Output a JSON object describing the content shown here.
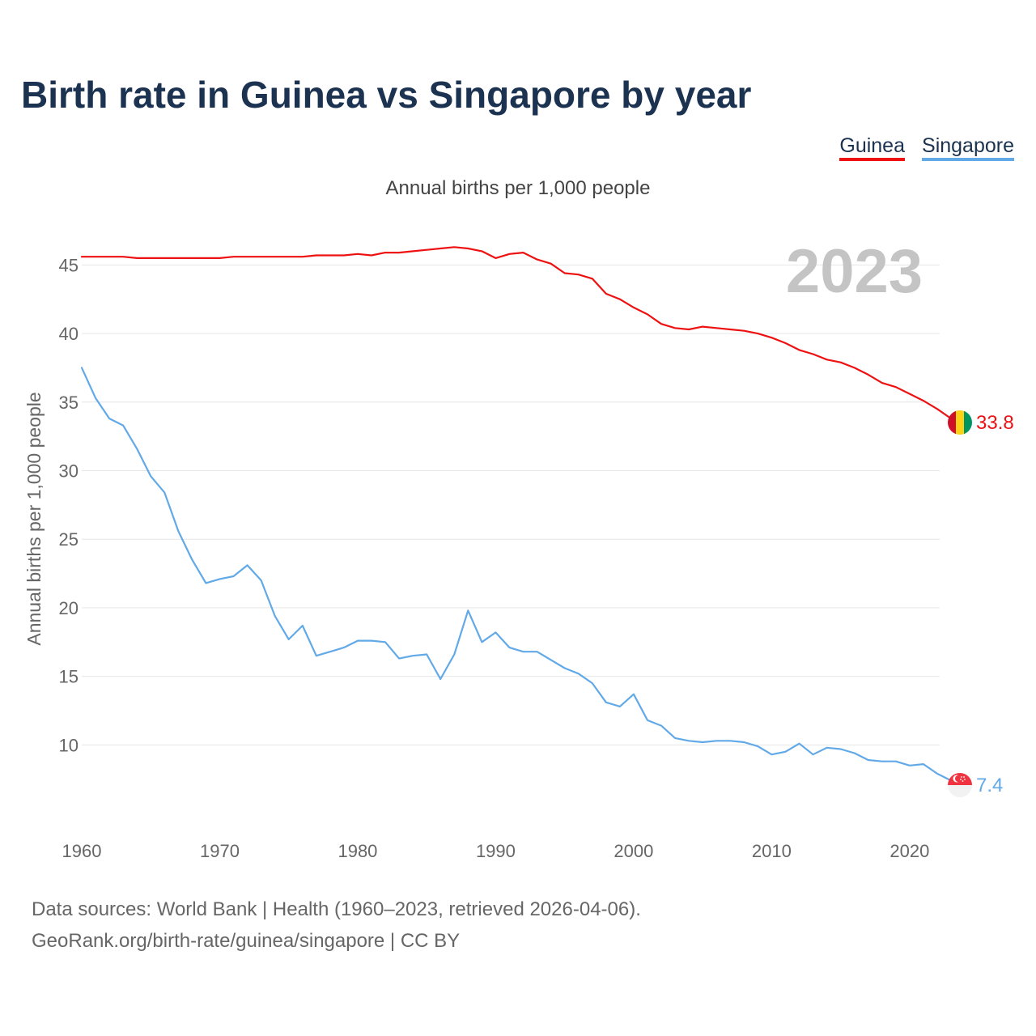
{
  "chart_data": {
    "type": "line",
    "title": "Birth rate in Guinea vs Singapore by year",
    "subtitle": "Annual births per 1,000 people",
    "ylabel": "Annual births per 1,000 people",
    "xlabel": "",
    "year_label": "2023",
    "xlim": [
      1960,
      2023
    ],
    "ylim": [
      5.3,
      47.5
    ],
    "x_ticks": [
      1960,
      1970,
      1980,
      1990,
      2000,
      2010,
      2020
    ],
    "y_ticks": [
      10,
      15,
      20,
      25,
      30,
      35,
      40,
      45
    ],
    "grid": true,
    "legend_position": "top-right",
    "series": [
      {
        "name": "Guinea",
        "color": "#ee1111",
        "end_label": "33.8",
        "flag": "guinea-flag",
        "x": [
          1960,
          1961,
          1962,
          1963,
          1964,
          1965,
          1966,
          1967,
          1968,
          1969,
          1970,
          1971,
          1972,
          1973,
          1974,
          1975,
          1976,
          1977,
          1978,
          1979,
          1980,
          1981,
          1982,
          1983,
          1984,
          1985,
          1986,
          1987,
          1988,
          1989,
          1990,
          1991,
          1992,
          1993,
          1994,
          1995,
          1996,
          1997,
          1998,
          1999,
          2000,
          2001,
          2002,
          2003,
          2004,
          2005,
          2006,
          2007,
          2008,
          2009,
          2010,
          2011,
          2012,
          2013,
          2014,
          2015,
          2016,
          2017,
          2018,
          2019,
          2020,
          2021,
          2022,
          2023
        ],
        "values": [
          45.6,
          45.6,
          45.6,
          45.6,
          45.5,
          45.5,
          45.5,
          45.5,
          45.5,
          45.5,
          45.5,
          45.6,
          45.6,
          45.6,
          45.6,
          45.6,
          45.6,
          45.7,
          45.7,
          45.7,
          45.8,
          45.7,
          45.9,
          45.9,
          46.0,
          46.1,
          46.2,
          46.3,
          46.2,
          46.0,
          45.5,
          45.8,
          45.9,
          45.4,
          45.1,
          44.4,
          44.3,
          44.0,
          42.9,
          42.5,
          41.9,
          41.4,
          40.7,
          40.4,
          40.3,
          40.5,
          40.4,
          40.3,
          40.2,
          40.0,
          39.7,
          39.3,
          38.8,
          38.5,
          38.1,
          37.9,
          37.5,
          37.0,
          36.4,
          36.1,
          35.6,
          35.1,
          34.5,
          33.8
        ]
      },
      {
        "name": "Singapore",
        "color": "#62a9e8",
        "end_label": "7.4",
        "flag": "singapore-flag",
        "x": [
          1960,
          1961,
          1962,
          1963,
          1964,
          1965,
          1966,
          1967,
          1968,
          1969,
          1970,
          1971,
          1972,
          1973,
          1974,
          1975,
          1976,
          1977,
          1978,
          1979,
          1980,
          1981,
          1982,
          1983,
          1984,
          1985,
          1986,
          1987,
          1988,
          1989,
          1990,
          1991,
          1992,
          1993,
          1994,
          1995,
          1996,
          1997,
          1998,
          1999,
          2000,
          2001,
          2002,
          2003,
          2004,
          2005,
          2006,
          2007,
          2008,
          2009,
          2010,
          2011,
          2012,
          2013,
          2014,
          2015,
          2016,
          2017,
          2018,
          2019,
          2020,
          2021,
          2022,
          2023
        ],
        "values": [
          37.5,
          35.3,
          33.8,
          33.3,
          31.6,
          29.6,
          28.4,
          25.6,
          23.5,
          21.8,
          22.1,
          22.3,
          23.1,
          22.0,
          19.4,
          17.7,
          18.7,
          16.5,
          16.8,
          17.1,
          17.6,
          17.6,
          17.5,
          16.3,
          16.5,
          16.6,
          14.8,
          16.6,
          19.8,
          17.5,
          18.2,
          17.1,
          16.8,
          16.8,
          16.2,
          15.6,
          15.2,
          14.5,
          13.1,
          12.8,
          13.7,
          11.8,
          11.4,
          10.5,
          10.3,
          10.2,
          10.3,
          10.3,
          10.2,
          9.9,
          9.3,
          9.5,
          10.1,
          9.3,
          9.8,
          9.7,
          9.4,
          8.9,
          8.8,
          8.8,
          8.5,
          8.6,
          7.9,
          7.4
        ]
      }
    ]
  },
  "source": {
    "line1": "Data sources: World Bank | Health (1960–2023, retrieved 2026-04-06).",
    "line2": "GeoRank.org/birth-rate/guinea/singapore | CC BY"
  }
}
